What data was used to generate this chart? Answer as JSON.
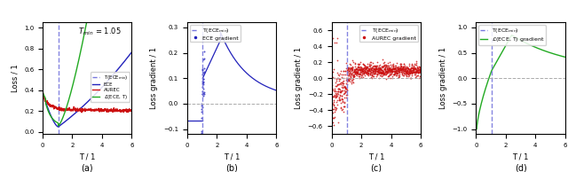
{
  "T_min": 1.05,
  "subplot_labels": [
    "(a)",
    "(b)",
    "(c)",
    "(d)"
  ],
  "colors": {
    "T_ECEmin": "#7777dd",
    "ECE": "#2222bb",
    "AUREC": "#cc1111",
    "cECE_T": "#22aa22",
    "zero_line": "#aaaaaa"
  },
  "panel_a": {
    "ylim": [
      -0.02,
      1.05
    ],
    "yticks": [
      0.0,
      0.2,
      0.4,
      0.6,
      0.8,
      1.0
    ],
    "xticks": [
      0,
      2,
      4,
      6
    ]
  },
  "panel_b": {
    "ylim": [
      -0.12,
      0.32
    ],
    "yticks": [
      -0.1,
      0.0,
      0.1,
      0.2,
      0.3
    ],
    "xticks": [
      0,
      2,
      4,
      6
    ]
  },
  "panel_c": {
    "ylim": [
      -0.7,
      0.7
    ],
    "yticks": [
      -0.6,
      -0.4,
      -0.2,
      0.0,
      0.2,
      0.4,
      0.6
    ],
    "xticks": [
      0,
      2,
      4,
      6
    ]
  },
  "panel_d": {
    "ylim": [
      -1.1,
      1.1
    ],
    "yticks": [
      -1.0,
      -0.5,
      0.0,
      0.5,
      1.0
    ],
    "xticks": [
      0,
      2,
      4,
      6
    ]
  }
}
